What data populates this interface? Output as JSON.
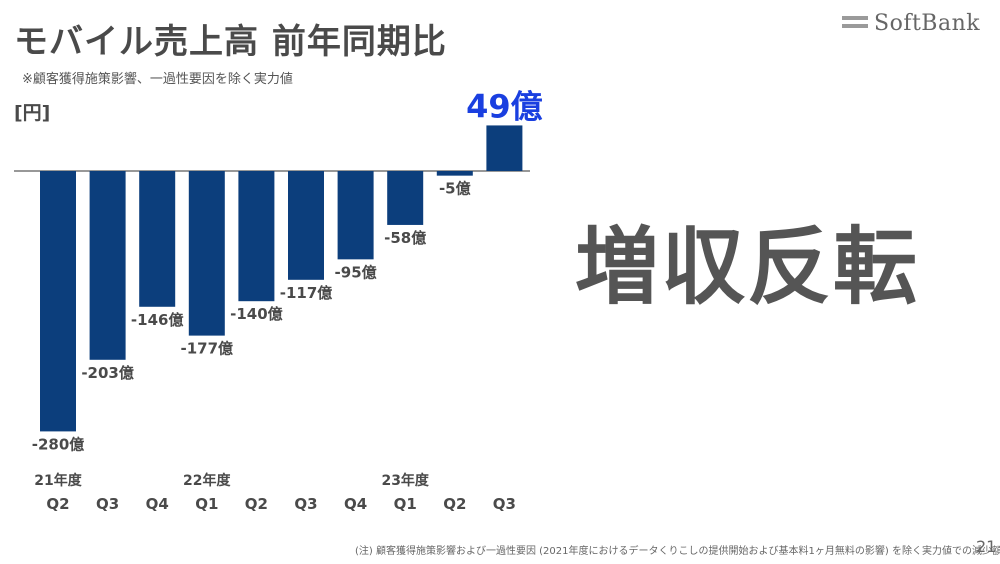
{
  "header": {
    "title": "モバイル売上高 前年同期比",
    "subtitle": "※顧客獲得施策影響、一過性要因を除く実力値",
    "logo_text": "SoftBank"
  },
  "chart_data": {
    "type": "bar",
    "unit_label": "[円]",
    "categories": [
      "Q2",
      "Q3",
      "Q4",
      "Q1",
      "Q2",
      "Q3",
      "Q4",
      "Q1",
      "Q2",
      "Q3"
    ],
    "year_labels": [
      {
        "label": "21年度",
        "category_index": 0
      },
      {
        "label": "22年度",
        "category_index": 3
      },
      {
        "label": "23年度",
        "category_index": 7
      }
    ],
    "values": [
      -280,
      -203,
      -146,
      -177,
      -140,
      -117,
      -95,
      -58,
      -5,
      49
    ],
    "value_labels": [
      "-280億",
      "-203億",
      "-146億",
      "-177億",
      "-140億",
      "-117億",
      "-95億",
      "-58億",
      "-5億",
      "49億"
    ],
    "highlight_index": 9,
    "ylim": [
      -280,
      49
    ],
    "colors": {
      "bar": "#0c3e7c",
      "highlight_label": "#1a3fe0",
      "label": "#4a4a4a",
      "axis": "#777777"
    }
  },
  "callout": {
    "text": "増収反転"
  },
  "footer": {
    "note": "(注) 顧客獲得施策影響および一過性要因 (2021年度におけるデータくりこしの提供開始および基本料1ヶ月無料の影響) を除く実力値での減少額",
    "page_number": "21"
  }
}
